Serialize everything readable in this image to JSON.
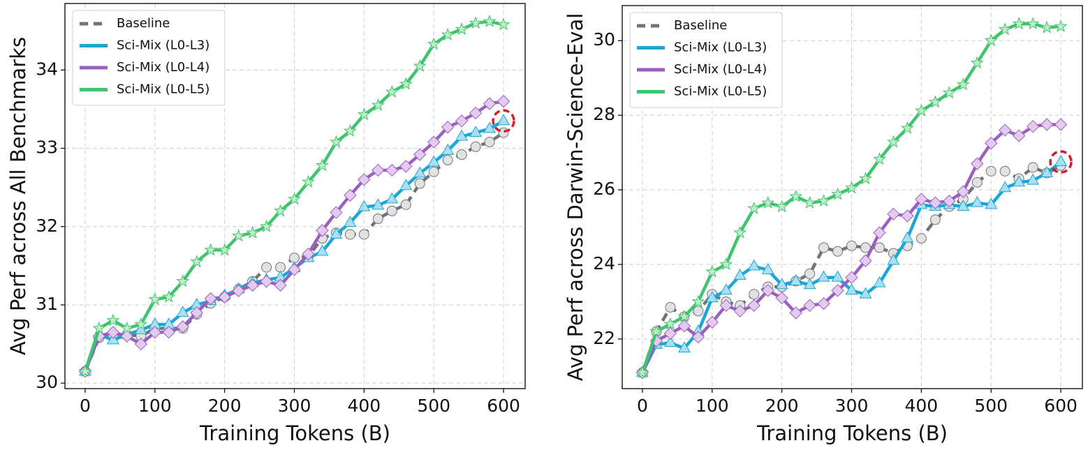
{
  "chart_data": [
    {
      "type": "line",
      "xlabel": "Training Tokens (B)",
      "ylabel": "Avg Perf across All Benchmarks",
      "x": [
        0,
        20,
        40,
        60,
        80,
        100,
        120,
        140,
        160,
        180,
        200,
        220,
        240,
        260,
        280,
        300,
        320,
        340,
        360,
        380,
        400,
        420,
        440,
        460,
        480,
        500,
        520,
        540,
        560,
        580,
        600
      ],
      "series": [
        {
          "name": "Baseline",
          "color": "#6e737c",
          "linestyle": "dashed",
          "marker": "circle",
          "marker_fill": "#e2e2e2",
          "values": [
            30.15,
            30.58,
            30.6,
            30.62,
            30.6,
            30.7,
            30.7,
            30.7,
            30.88,
            31.02,
            31.1,
            31.2,
            31.3,
            31.48,
            31.48,
            31.6,
            31.62,
            31.85,
            31.92,
            31.9,
            31.9,
            32.1,
            32.2,
            32.28,
            32.55,
            32.7,
            32.85,
            32.92,
            33.02,
            33.08,
            33.2
          ]
        },
        {
          "name": "Sci-Mix (L0-L3)",
          "color": "#1ba6d6",
          "linestyle": "solid",
          "marker": "triangle",
          "marker_fill": "#a9e0f1",
          "values": [
            30.15,
            30.62,
            30.55,
            30.62,
            30.68,
            30.75,
            30.75,
            30.9,
            31.0,
            31.05,
            31.12,
            31.2,
            31.28,
            31.32,
            31.35,
            31.47,
            31.6,
            31.68,
            31.9,
            32.05,
            32.25,
            32.27,
            32.35,
            32.52,
            32.68,
            32.82,
            32.97,
            33.15,
            33.2,
            33.25,
            33.35
          ]
        },
        {
          "name": "Sci-Mix (L0-L4)",
          "color": "#9b5fc0",
          "linestyle": "solid",
          "marker": "diamond",
          "marker_fill": "#e2cbef",
          "values": [
            30.15,
            30.6,
            30.65,
            30.6,
            30.5,
            30.65,
            30.65,
            30.72,
            30.9,
            31.08,
            31.1,
            31.18,
            31.25,
            31.3,
            31.25,
            31.45,
            31.65,
            31.95,
            32.18,
            32.4,
            32.6,
            32.72,
            32.72,
            32.77,
            32.92,
            33.08,
            33.27,
            33.35,
            33.45,
            33.57,
            33.6
          ]
        },
        {
          "name": "Sci-Mix (L0-L5)",
          "color": "#3ec46d",
          "linestyle": "solid",
          "marker": "star",
          "marker_fill": "#bdeec5",
          "values": [
            30.15,
            30.7,
            30.8,
            30.7,
            30.75,
            31.07,
            31.1,
            31.3,
            31.55,
            31.7,
            31.7,
            31.88,
            31.92,
            32.0,
            32.2,
            32.35,
            32.57,
            32.78,
            33.08,
            33.22,
            33.43,
            33.55,
            33.72,
            33.82,
            34.05,
            34.33,
            34.45,
            34.52,
            34.6,
            34.62,
            34.58
          ]
        }
      ],
      "xlim": [
        -29,
        631
      ],
      "ylim": [
        29.93,
        34.85
      ],
      "xticks": [
        0,
        100,
        200,
        300,
        400,
        500,
        600
      ],
      "yticks": [
        30,
        31,
        32,
        33,
        34
      ],
      "grid": true,
      "legend": "upper left"
    },
    {
      "type": "line",
      "xlabel": "Training Tokens (B)",
      "ylabel": "Avg Perf across Darwin-Science-Eval",
      "x": [
        0,
        20,
        40,
        60,
        80,
        100,
        120,
        140,
        160,
        180,
        200,
        220,
        240,
        260,
        280,
        300,
        320,
        340,
        360,
        380,
        400,
        420,
        440,
        460,
        480,
        500,
        520,
        540,
        560,
        580,
        600
      ],
      "series": [
        {
          "name": "Baseline",
          "color": "#6e737c",
          "linestyle": "dashed",
          "marker": "circle",
          "marker_fill": "#e2e2e2",
          "values": [
            21.1,
            22.2,
            22.85,
            22.6,
            22.75,
            23.2,
            23.0,
            22.9,
            23.2,
            23.4,
            23.4,
            23.55,
            23.75,
            24.45,
            24.35,
            24.5,
            24.45,
            24.45,
            24.3,
            24.5,
            24.7,
            25.2,
            25.55,
            25.75,
            26.2,
            26.5,
            26.5,
            26.3,
            26.6,
            26.45,
            26.65
          ]
        },
        {
          "name": "Sci-Mix (L0-L3)",
          "color": "#1ba6d6",
          "linestyle": "solid",
          "marker": "triangle",
          "marker_fill": "#a9e0f1",
          "values": [
            21.1,
            21.85,
            21.9,
            21.75,
            22.2,
            23.1,
            23.3,
            23.7,
            23.95,
            23.85,
            23.45,
            23.55,
            23.45,
            23.65,
            23.65,
            23.3,
            23.2,
            23.5,
            24.1,
            24.7,
            25.6,
            25.55,
            25.6,
            25.55,
            25.65,
            25.6,
            26.05,
            26.2,
            26.25,
            26.45,
            26.75
          ]
        },
        {
          "name": "Sci-Mix (L0-L4)",
          "color": "#9b5fc0",
          "linestyle": "solid",
          "marker": "diamond",
          "marker_fill": "#e2cbef",
          "values": [
            21.1,
            21.95,
            22.15,
            22.35,
            22.05,
            22.45,
            22.9,
            22.75,
            22.9,
            23.3,
            23.1,
            22.7,
            22.9,
            22.95,
            23.3,
            23.65,
            24.1,
            24.85,
            25.35,
            25.3,
            25.75,
            25.65,
            25.7,
            25.95,
            26.7,
            27.25,
            27.6,
            27.45,
            27.7,
            27.75,
            27.75
          ]
        },
        {
          "name": "Sci-Mix (L0-L5)",
          "color": "#3ec46d",
          "linestyle": "solid",
          "marker": "star",
          "marker_fill": "#bdeec5",
          "values": [
            21.1,
            22.2,
            22.4,
            22.6,
            23.0,
            23.8,
            24.0,
            24.85,
            25.5,
            25.65,
            25.55,
            25.82,
            25.65,
            25.7,
            25.88,
            26.05,
            26.3,
            26.82,
            27.28,
            27.65,
            28.12,
            28.35,
            28.6,
            28.82,
            29.4,
            30.0,
            30.3,
            30.45,
            30.45,
            30.35,
            30.38
          ]
        }
      ],
      "xlim": [
        -29,
        631
      ],
      "ylim": [
        20.67,
        30.94
      ],
      "xticks": [
        0,
        100,
        200,
        300,
        400,
        500,
        600
      ],
      "yticks": [
        22,
        24,
        26,
        28,
        30
      ],
      "grid": true,
      "legend": "upper left"
    }
  ]
}
